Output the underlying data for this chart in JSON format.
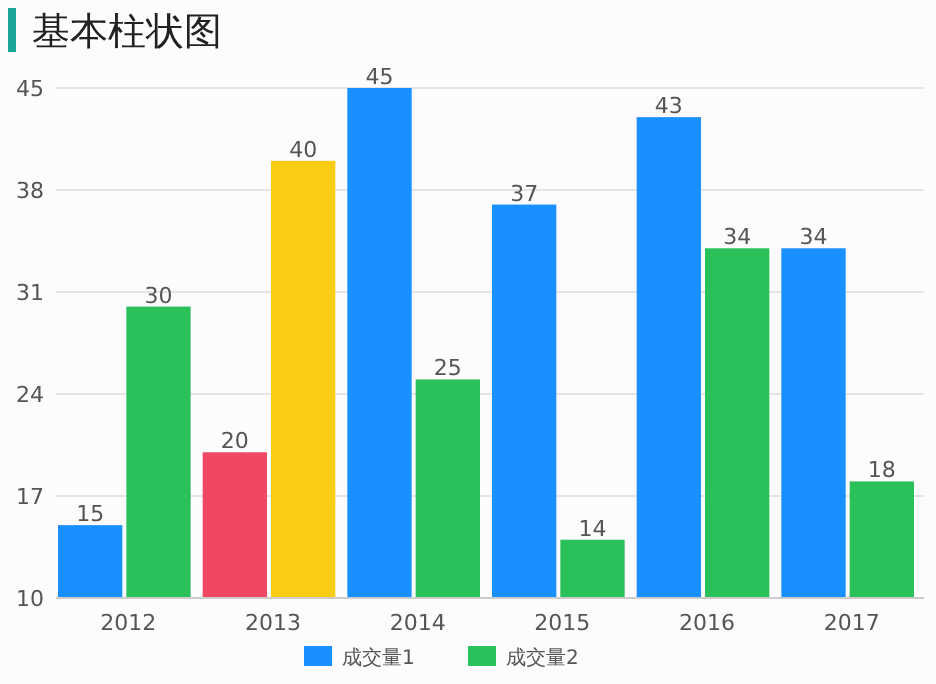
{
  "chart_data": {
    "type": "bar",
    "title": "基本柱状图",
    "categories": [
      "2012",
      "2013",
      "2014",
      "2015",
      "2016",
      "2017"
    ],
    "series": [
      {
        "name": "成交量1",
        "color": "#1890ff",
        "colors": [
          "#1890ff",
          "#f04864",
          "#1890ff",
          "#1890ff",
          "#1890ff",
          "#1890ff"
        ],
        "values": [
          15,
          20,
          45,
          37,
          43,
          34
        ]
      },
      {
        "name": "成交量2",
        "color": "#2bc15a",
        "colors": [
          "#2bc15a",
          "#facc14",
          "#2bc15a",
          "#2bc15a",
          "#2bc15a",
          "#2bc15a"
        ],
        "values": [
          30,
          40,
          25,
          14,
          34,
          18
        ]
      }
    ],
    "ylim": [
      10,
      45
    ],
    "yticks": [
      10,
      17,
      24,
      31,
      38,
      45
    ],
    "grid": "y",
    "legend": "bottom",
    "data_labels": true
  }
}
